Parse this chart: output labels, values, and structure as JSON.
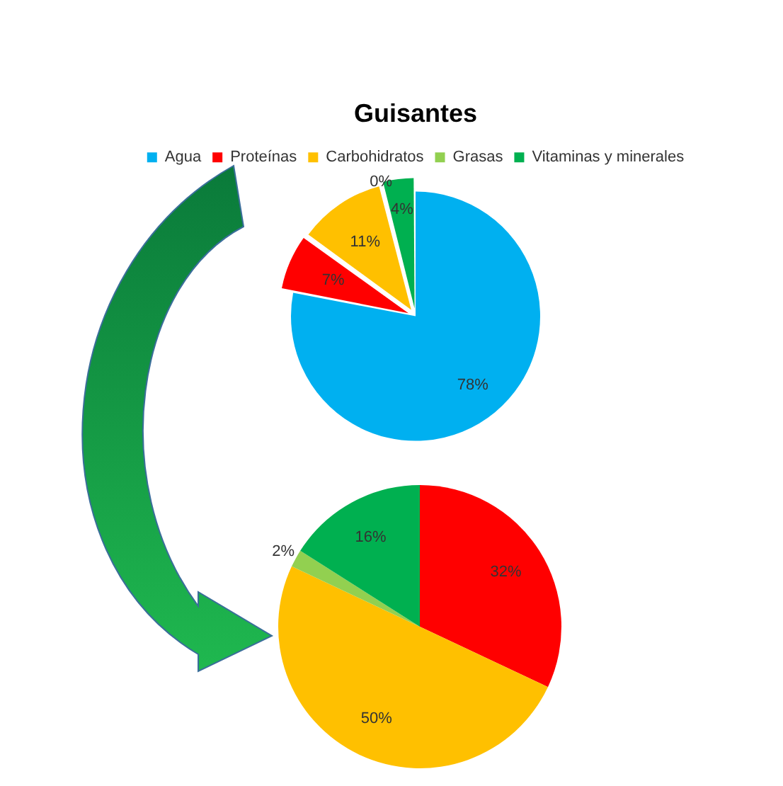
{
  "chart_data": [
    {
      "type": "pie",
      "title": "Guisantes",
      "legend": "top",
      "categories": [
        "Agua",
        "Proteínas",
        "Carbohidratos",
        "Grasas",
        "Vitaminas y minerales"
      ],
      "values": [
        78,
        7,
        11,
        0,
        4
      ],
      "value_labels": [
        "78%",
        "7%",
        "11%",
        "0%",
        "4%"
      ],
      "colors": [
        "#00b0f0",
        "#ff0000",
        "#ffc000",
        "#92d050",
        "#00b050"
      ]
    },
    {
      "type": "pie",
      "categories": [
        null,
        null,
        null,
        null
      ],
      "values": [
        32,
        50,
        2,
        16
      ],
      "value_labels": [
        "32%",
        "50%",
        "2%",
        "16%"
      ],
      "colors": [
        "#ff0000",
        "#ffc000",
        "#92d050",
        "#00b050"
      ]
    }
  ]
}
